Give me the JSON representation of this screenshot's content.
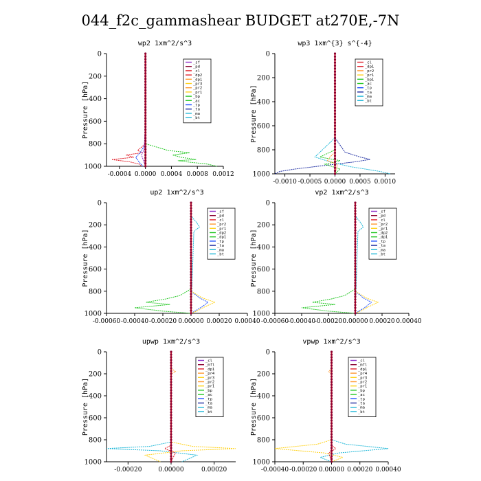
{
  "page_title": "044_f2c_gammashear  BUDGET at270E,-7N",
  "colors": {
    "purple": "#8e2cc8",
    "darkred": "#8a0030",
    "red": "#e0202a",
    "orange": "#ff9a30",
    "yellow": "#ffd21a",
    "green": "#28c828",
    "blue": "#1a4cff",
    "darkblue": "#1a2aa0",
    "cyan": "#20b8d8",
    "black": "#000000"
  },
  "chart_data": [
    {
      "type": "line",
      "title": "wp2  1xm^2/s^3",
      "ylabel": "Pressure [hPa]",
      "ylim": [
        1000,
        0
      ],
      "yticks": [
        0,
        200,
        400,
        600,
        800,
        1000
      ],
      "xlim": [
        -0.0006,
        0.0012
      ],
      "xticks": [
        -0.0004,
        0.0,
        0.0004,
        0.0008,
        0.0012
      ],
      "xtick_labels": [
        "-0.0004",
        "0.0000",
        "0.0004",
        "0.0008",
        "0.0012"
      ],
      "legend": [
        "_sf",
        "_pd",
        "_cl",
        "_dp2",
        "_dp1",
        "_pr3",
        "_pr2",
        "_pr1",
        "_bp",
        "_ac",
        "_tp",
        "_ta",
        "_ma",
        "_bt"
      ],
      "legend_colors": [
        "purple",
        "darkred",
        "red",
        "red",
        "orange",
        "yellow",
        "orange",
        "yellow",
        "green",
        "green",
        "blue",
        "darkblue",
        "cyan",
        "cyan"
      ],
      "series": [
        {
          "color": "green",
          "p": [
            0,
            600,
            800,
            860,
            880,
            900,
            920,
            940,
            950,
            960,
            980,
            1000
          ],
          "v": [
            0,
            0,
            0.0,
            0.00035,
            0.00068,
            0.00042,
            0.00055,
            0.00078,
            0.0005,
            0.00062,
            0.00095,
            0.0011
          ]
        },
        {
          "color": "red",
          "p": [
            0,
            600,
            800,
            860,
            880,
            900,
            920,
            940,
            960,
            980,
            1000
          ],
          "v": [
            0,
            0,
            0,
            -0.00012,
            -5e-05,
            -0.0003,
            -0.00018,
            -0.00052,
            -0.00025,
            -0.0001,
            -5e-05
          ]
        },
        {
          "color": "blue",
          "p": [
            0,
            800,
            880,
            920,
            960,
            1000
          ],
          "v": [
            0,
            0,
            -8e-05,
            -0.00015,
            -0.0001,
            -4e-05
          ]
        },
        {
          "color": "purple",
          "p": [
            0,
            600,
            850,
            900,
            950,
            1000
          ],
          "v": [
            0,
            0,
            -2e-05,
            -6e-05,
            -3e-05,
            0
          ]
        },
        {
          "color": "darkred",
          "p": [
            0,
            1000
          ],
          "v": [
            0,
            0
          ]
        }
      ]
    },
    {
      "type": "line",
      "title": "wp3  1xm^{3} s^{-4}",
      "ylabel": "Pressure [hPa]",
      "ylim": [
        1000,
        0
      ],
      "yticks": [
        0,
        200,
        400,
        600,
        800,
        1000
      ],
      "xlim": [
        -0.0012,
        0.0012
      ],
      "xticks": [
        -0.001,
        -0.0005,
        0.0,
        0.0005,
        0.001
      ],
      "xtick_labels": [
        "-0.0010",
        "-0.0005",
        "0.0000",
        "0.0005",
        "0.0010"
      ],
      "legend": [
        "_cl",
        "_dp1",
        "_pr2",
        "_pr1",
        "_bp1",
        "_ac",
        "_tp",
        "_ta",
        "_ma",
        "_bt"
      ],
      "legend_colors": [
        "red",
        "red",
        "orange",
        "yellow",
        "green",
        "green",
        "blue",
        "darkblue",
        "cyan",
        "cyan"
      ],
      "series": [
        {
          "color": "darkblue",
          "p": [
            0,
            700,
            820,
            860,
            880,
            900,
            940,
            960,
            980,
            1000
          ],
          "v": [
            0,
            0,
            0.0002,
            0.0005,
            0.0007,
            0.0004,
            -0.0004,
            -0.0008,
            -0.0011,
            -0.0012
          ]
        },
        {
          "color": "cyan",
          "p": [
            0,
            700,
            860,
            900,
            940,
            960,
            980,
            1000
          ],
          "v": [
            0,
            0,
            -0.0004,
            -0.0001,
            0.0003,
            0.0006,
            0.0009,
            0.0011
          ]
        },
        {
          "color": "green",
          "p": [
            0,
            800,
            860,
            890,
            920,
            960,
            1000
          ],
          "v": [
            0,
            0,
            -0.0003,
            0.0001,
            -0.0002,
            0.0001,
            0
          ]
        },
        {
          "color": "orange",
          "p": [
            0,
            820,
            860,
            890,
            920,
            1000
          ],
          "v": [
            0,
            0,
            -0.0001,
            -0.00015,
            5e-05,
            0
          ]
        },
        {
          "color": "red",
          "p": [
            0,
            1000
          ],
          "v": [
            0,
            0
          ]
        }
      ]
    },
    {
      "type": "line",
      "title": "up2  1xm^2/s^3",
      "ylabel": "Pressure [hPa]",
      "ylim": [
        1000,
        0
      ],
      "yticks": [
        0,
        200,
        400,
        600,
        800,
        1000
      ],
      "xlim": [
        -0.0006,
        0.0004
      ],
      "xticks": [
        -0.0006,
        -0.0004,
        -0.0002,
        0.0,
        0.0002,
        0.0004
      ],
      "xtick_labels": [
        "-0.00060",
        "-0.00040",
        "-0.00020",
        "0.00000",
        "0.00020",
        "0.00040"
      ],
      "legend": [
        "_sf",
        "_pd",
        "_cl",
        "_pr2",
        "_pr1",
        "_dp2",
        "_dp1",
        "_tp",
        "_ta",
        "_ma",
        "_bt"
      ],
      "legend_colors": [
        "purple",
        "darkred",
        "red",
        "orange",
        "yellow",
        "green",
        "green",
        "blue",
        "darkblue",
        "cyan",
        "cyan"
      ],
      "series": [
        {
          "color": "green",
          "p": [
            0,
            780,
            840,
            870,
            900,
            920,
            950,
            980,
            1000
          ],
          "v": [
            0,
            0,
            -8e-05,
            -0.00018,
            -0.00032,
            -0.00015,
            -0.0004,
            -0.0002,
            0
          ]
        },
        {
          "color": "blue",
          "p": [
            0,
            800,
            860,
            900,
            940,
            1000
          ],
          "v": [
            0,
            0,
            6e-05,
            0.00012,
            8e-05,
            0
          ]
        },
        {
          "color": "yellow",
          "p": [
            0,
            800,
            860,
            900,
            940,
            980,
            1000
          ],
          "v": [
            0,
            0,
            8e-05,
            0.00017,
            0.0001,
            4e-05,
            0
          ]
        },
        {
          "color": "cyan",
          "p": [
            0,
            120,
            180,
            220,
            260,
            1000
          ],
          "v": [
            0,
            0,
            4e-05,
            6e-05,
            2e-05,
            0
          ]
        },
        {
          "color": "darkred",
          "p": [
            0,
            1000
          ],
          "v": [
            0,
            0
          ]
        }
      ]
    },
    {
      "type": "line",
      "title": "vp2  1xm^2/s^3",
      "ylabel": "Pressure [hPa]",
      "ylim": [
        1000,
        0
      ],
      "yticks": [
        0,
        200,
        400,
        600,
        800,
        1000
      ],
      "xlim": [
        -0.0006,
        0.0004
      ],
      "xticks": [
        -0.0006,
        -0.0004,
        -0.0002,
        0.0,
        0.0002,
        0.0004
      ],
      "xtick_labels": [
        "-0.00060",
        "-0.00040",
        "-0.00020",
        "0.00000",
        "0.00020",
        "0.00040"
      ],
      "legend": [
        "_sf",
        "_pd",
        "_cl",
        "_pr2",
        "_pr1",
        "_dp2",
        "_dp1",
        "_tp",
        "_ta",
        "_ma",
        "_bt"
      ],
      "legend_colors": [
        "purple",
        "darkred",
        "red",
        "orange",
        "yellow",
        "green",
        "green",
        "blue",
        "darkblue",
        "cyan",
        "cyan"
      ],
      "series": [
        {
          "color": "green",
          "p": [
            0,
            780,
            840,
            870,
            900,
            920,
            950,
            980,
            1000
          ],
          "v": [
            0,
            0,
            -8e-05,
            -0.00018,
            -0.00032,
            -0.00015,
            -0.0004,
            -0.0002,
            0
          ]
        },
        {
          "color": "blue",
          "p": [
            0,
            800,
            860,
            900,
            940,
            1000
          ],
          "v": [
            0,
            0,
            6e-05,
            0.00012,
            8e-05,
            0
          ]
        },
        {
          "color": "yellow",
          "p": [
            0,
            800,
            860,
            900,
            940,
            980,
            1000
          ],
          "v": [
            0,
            0,
            8e-05,
            0.00017,
            0.0001,
            4e-05,
            0
          ]
        },
        {
          "color": "cyan",
          "p": [
            0,
            120,
            180,
            220,
            260,
            1000
          ],
          "v": [
            0,
            0,
            4e-05,
            6e-05,
            2e-05,
            0
          ]
        },
        {
          "color": "darkred",
          "p": [
            0,
            1000
          ],
          "v": [
            0,
            0
          ]
        }
      ]
    },
    {
      "type": "line",
      "title": "upwp  1xm^2/s^3",
      "ylabel": "Pressure [hPa]",
      "ylim": [
        1000,
        0
      ],
      "yticks": [
        0,
        200,
        400,
        600,
        800,
        1000
      ],
      "xlim": [
        -0.0003,
        0.0003
      ],
      "xticks": [
        -0.0002,
        0.0,
        0.0002
      ],
      "xtick_labels": [
        "-0.00020",
        "0.00000",
        "0.00020"
      ],
      "legend": [
        "_cl",
        "_mfl",
        "_dp1",
        "_pr4",
        "_pr3",
        "_pr2",
        "_pr1",
        "_bp",
        "_ac",
        "_tp",
        "_ta",
        "_ma",
        "_bt"
      ],
      "legend_colors": [
        "purple",
        "darkred",
        "red",
        "orange",
        "yellow",
        "orange",
        "yellow",
        "green",
        "green",
        "blue",
        "darkblue",
        "cyan",
        "cyan"
      ],
      "series": [
        {
          "color": "cyan",
          "p": [
            0,
            820,
            860,
            880,
            900,
            940,
            1000
          ],
          "v": [
            0,
            0,
            -0.0001,
            -0.0003,
            -5e-05,
            0.00012,
            5e-05
          ]
        },
        {
          "color": "yellow",
          "p": [
            0,
            820,
            860,
            880,
            900,
            940,
            1000
          ],
          "v": [
            0,
            0,
            0.0001,
            0.0003,
            5e-05,
            -0.00012,
            -5e-05
          ]
        },
        {
          "color": "orange",
          "p": [
            0,
            150,
            180,
            200,
            1000
          ],
          "v": [
            0,
            0,
            2e-05,
            0,
            0
          ]
        },
        {
          "color": "red",
          "p": [
            0,
            850,
            880,
            920,
            1000
          ],
          "v": [
            0,
            0,
            -3e-05,
            2e-05,
            0
          ]
        },
        {
          "color": "darkred",
          "p": [
            0,
            1000
          ],
          "v": [
            0,
            0
          ]
        }
      ]
    },
    {
      "type": "line",
      "title": "vpwp  1xm^2/s^3",
      "ylabel": "Pressure [hPa]",
      "ylim": [
        1000,
        0
      ],
      "yticks": [
        0,
        200,
        400,
        600,
        800,
        1000
      ],
      "xlim": [
        -0.0004,
        0.0004
      ],
      "xticks": [
        -0.0004,
        -0.0002,
        0.0,
        0.0002,
        0.0004
      ],
      "xtick_labels": [
        "-0.00040",
        "-0.00020",
        "0.00000",
        "0.00020",
        "0.00040"
      ],
      "legend": [
        "_cl",
        "_mfl",
        "_dp1",
        "_pr4",
        "_pr3",
        "_pr2",
        "_pr1",
        "_bp",
        "_ac",
        "_tp",
        "_ta",
        "_ma",
        "_bt"
      ],
      "legend_colors": [
        "purple",
        "darkred",
        "red",
        "orange",
        "yellow",
        "orange",
        "yellow",
        "green",
        "green",
        "blue",
        "darkblue",
        "cyan",
        "cyan"
      ],
      "series": [
        {
          "color": "cyan",
          "p": [
            0,
            800,
            840,
            880,
            920,
            960,
            1000
          ],
          "v": [
            0,
            0,
            0.0001,
            0.0004,
            5e-05,
            -8e-05,
            0
          ]
        },
        {
          "color": "yellow",
          "p": [
            0,
            800,
            840,
            880,
            920,
            960,
            1000
          ],
          "v": [
            0,
            0,
            -0.0001,
            -0.0004,
            -5e-05,
            8e-05,
            0
          ]
        },
        {
          "color": "orange",
          "p": [
            0,
            150,
            180,
            200,
            1000
          ],
          "v": [
            0,
            0,
            -2e-05,
            0,
            0
          ]
        },
        {
          "color": "red",
          "p": [
            0,
            850,
            880,
            920,
            1000
          ],
          "v": [
            0,
            0,
            3e-05,
            -2e-05,
            0
          ]
        },
        {
          "color": "darkred",
          "p": [
            0,
            1000
          ],
          "v": [
            0,
            0
          ]
        }
      ]
    }
  ]
}
